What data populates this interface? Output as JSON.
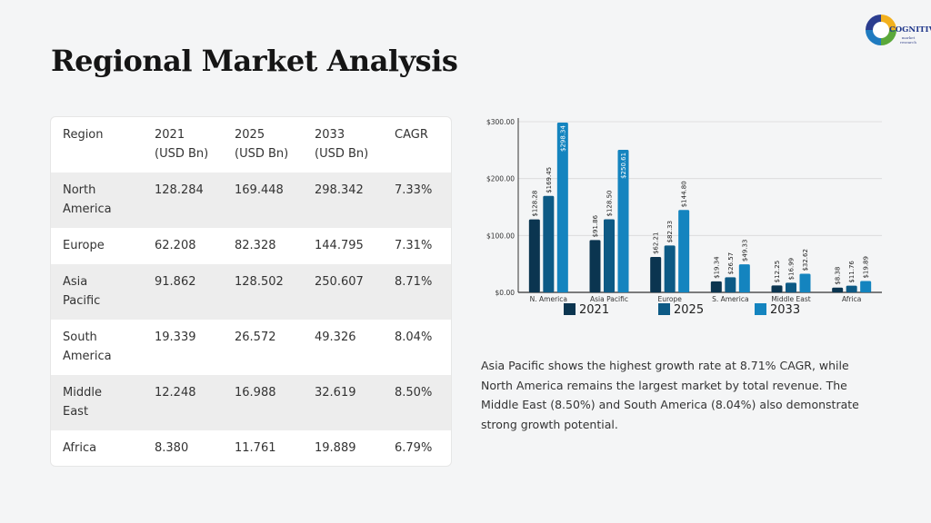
{
  "title": "Regional Market Analysis",
  "logo": {
    "text": "COGNITIVE",
    "subtext": "market research"
  },
  "table": {
    "headers": [
      [
        "Region"
      ],
      [
        "2021",
        "(USD Bn)"
      ],
      [
        "2025",
        "(USD Bn)"
      ],
      [
        "2033",
        "(USD Bn)"
      ],
      [
        "CAGR"
      ]
    ],
    "rows": [
      {
        "region": [
          "North",
          "America"
        ],
        "v2021": "128.284",
        "v2025": "169.448",
        "v2033": "298.342",
        "cagr": "7.33%"
      },
      {
        "region": [
          "Europe"
        ],
        "v2021": "62.208",
        "v2025": "82.328",
        "v2033": "144.795",
        "cagr": "7.31%"
      },
      {
        "region": [
          "Asia",
          "Pacific"
        ],
        "v2021": "91.862",
        "v2025": "128.502",
        "v2033": "250.607",
        "cagr": "8.71%"
      },
      {
        "region": [
          "South",
          "America"
        ],
        "v2021": "19.339",
        "v2025": "26.572",
        "v2033": "49.326",
        "cagr": "8.04%"
      },
      {
        "region": [
          "Middle",
          "East"
        ],
        "v2021": "12.248",
        "v2025": "16.988",
        "v2033": "32.619",
        "cagr": "8.50%"
      },
      {
        "region": [
          "Africa"
        ],
        "v2021": "8.380",
        "v2025": "11.761",
        "v2033": "19.889",
        "cagr": "6.79%"
      }
    ]
  },
  "chart_data": {
    "type": "bar",
    "categories": [
      "N. America",
      "Asia Pacific",
      "Europe",
      "S. America",
      "Middle East",
      "Africa"
    ],
    "series": [
      {
        "name": "2021",
        "color": "#0b3550",
        "values": [
          128.28,
          91.86,
          62.21,
          19.34,
          12.25,
          8.38
        ],
        "labels": [
          "$128.28",
          "$91.86",
          "$62.21",
          "$19.34",
          "$12.25",
          "$8.38"
        ]
      },
      {
        "name": "2025",
        "color": "#0d5a85",
        "values": [
          169.45,
          128.5,
          82.33,
          26.57,
          16.99,
          11.76
        ],
        "labels": [
          "$169.45",
          "$128.50",
          "$82.33",
          "$26.57",
          "$16.99",
          "$11.76"
        ]
      },
      {
        "name": "2033",
        "color": "#1484bf",
        "values": [
          298.34,
          250.61,
          144.8,
          49.33,
          32.62,
          19.89
        ],
        "labels": [
          "$298.34",
          "$250.61",
          "$144.80",
          "$49.33",
          "$32.62",
          "$19.89"
        ]
      }
    ],
    "yticks": [
      "$0.00",
      "$100.00",
      "$200.00",
      "$300.00"
    ],
    "ylim": [
      0,
      300
    ],
    "xlabel": "",
    "ylabel": "",
    "title": "",
    "grid": true,
    "legend": "bottom"
  },
  "summary": "Asia Pacific shows the highest growth rate at 8.71% CAGR, while North America remains the largest market by total revenue. The Middle East (8.50%) and South America (8.04%) also demonstrate strong growth potential."
}
